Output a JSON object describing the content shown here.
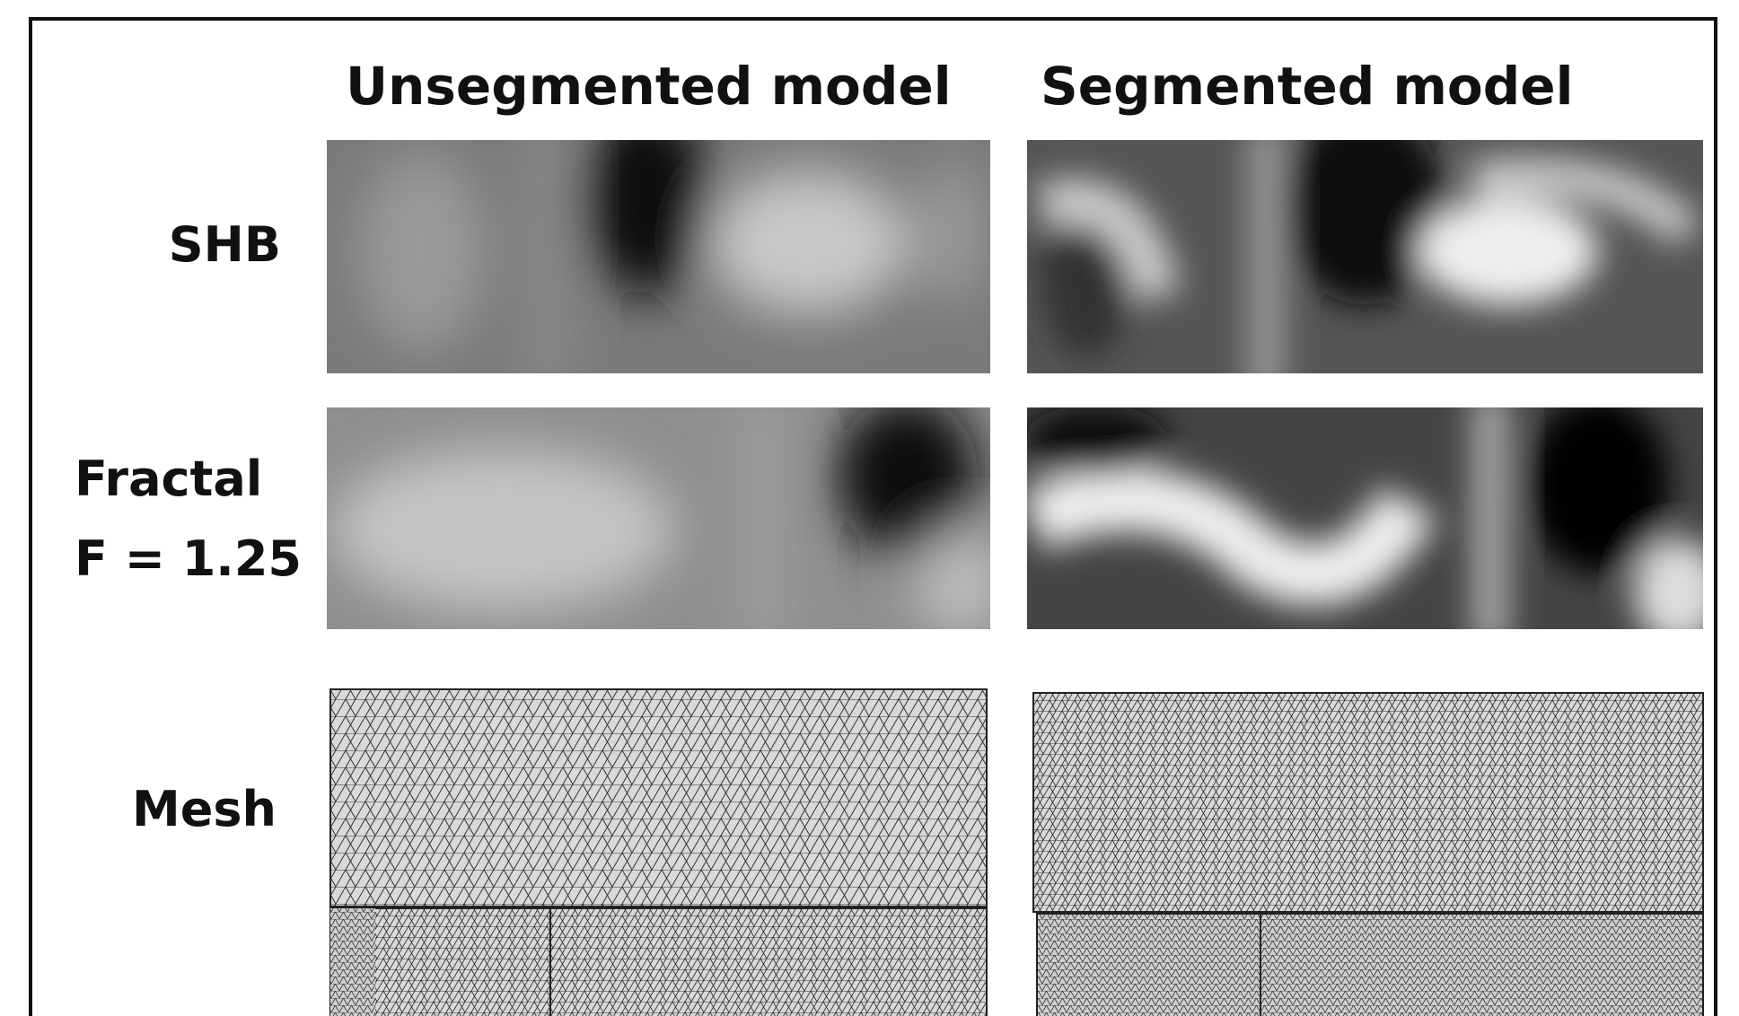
{
  "columns": [
    "Unsegmented model",
    "Segmented model"
  ],
  "rows": [
    [
      "SHB"
    ],
    [
      "Fractal",
      "F = 1.25"
    ],
    [
      "Mesh"
    ]
  ]
}
